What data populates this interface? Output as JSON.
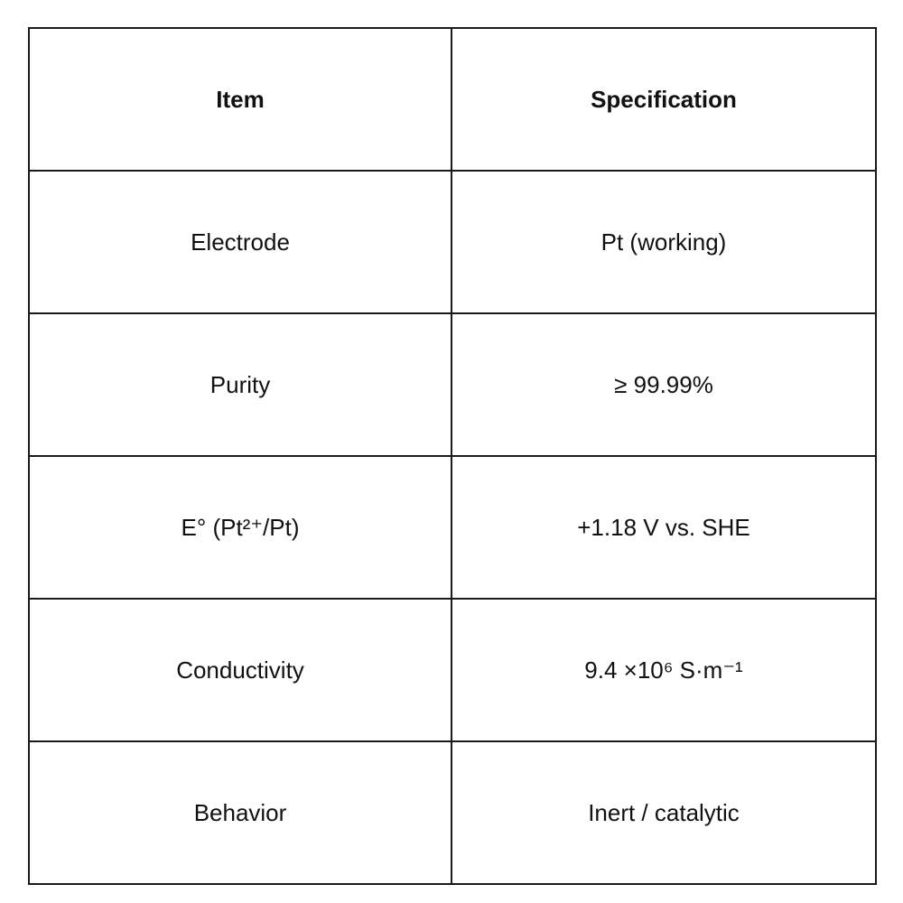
{
  "table": {
    "headers": [
      "Item",
      "Specification"
    ],
    "rows": [
      [
        "Electrode",
        "Pt (working)"
      ],
      [
        "Purity",
        "≥ 99.99%"
      ],
      [
        "E° (Pt²⁺/Pt)",
        "+1.18 V vs. SHE"
      ],
      [
        "Conductivity",
        "9.4 ×10⁶ S·m⁻¹"
      ],
      [
        "Behavior",
        "Inert / catalytic"
      ]
    ]
  }
}
